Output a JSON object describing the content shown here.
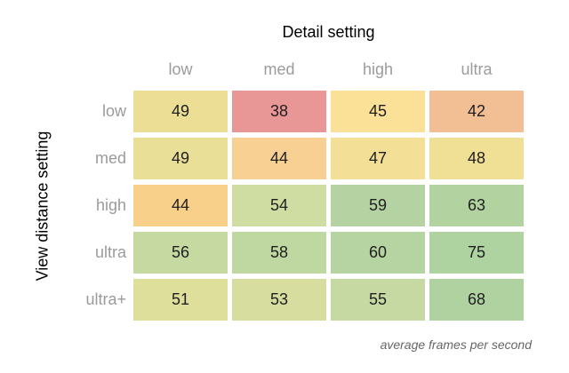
{
  "title": "Detail setting",
  "colors": {
    "background": "#ffffff",
    "title_text": "#000000",
    "tick_text": "#9b9b9b",
    "cell_text": "#1f1f1f",
    "caption_text": "#666666"
  },
  "chart_data": {
    "type": "heatmap",
    "title": "Detail setting",
    "xlabel": "Detail setting",
    "ylabel": "View distance setting",
    "caption": "average frames per second",
    "columns": [
      "low",
      "med",
      "high",
      "ultra"
    ],
    "rows": [
      "low",
      "med",
      "high",
      "ultra",
      "ultra+"
    ],
    "values": [
      [
        49,
        38,
        45,
        42
      ],
      [
        49,
        44,
        47,
        48
      ],
      [
        44,
        54,
        59,
        63
      ],
      [
        56,
        58,
        60,
        75
      ],
      [
        51,
        53,
        55,
        68
      ]
    ],
    "cell_colors": [
      [
        "#ecdf95",
        "#e99697",
        "#fbe098",
        "#f2bf95"
      ],
      [
        "#eadf96",
        "#f9d094",
        "#f3e096",
        "#efe096"
      ],
      [
        "#f9d089",
        "#cfdda2",
        "#b5d3a2",
        "#b2d3a0"
      ],
      [
        "#c5d9a0",
        "#bfd7a1",
        "#b6d4a1",
        "#aed2a0"
      ],
      [
        "#dedf9a",
        "#d6dd9e",
        "#c6d9a2",
        "#b0d2a0"
      ]
    ],
    "value_range": [
      38,
      75
    ],
    "legend": "none",
    "grid": "off",
    "units": "average frames per second"
  }
}
